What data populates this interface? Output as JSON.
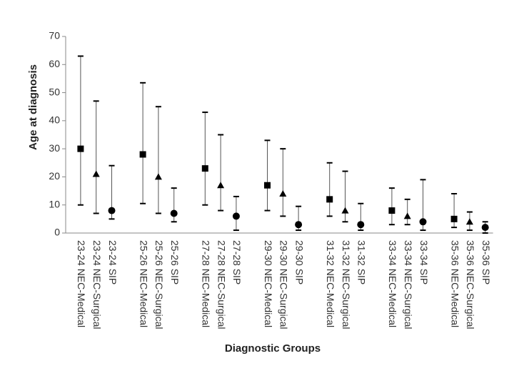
{
  "chart_data": {
    "type": "range",
    "y_label": "Age at diagnosis",
    "x_label": "Diagnostic Groups",
    "categories": [
      "23-24 NEC-Medical",
      "23-24 NEC-Surgical",
      "23-24 SIP",
      null,
      "25-26 NEC-Medical",
      "25-26 NEC-Surgical",
      "25-26 SIP",
      null,
      "27-28 NEC-Medical",
      "27-28 NEC-Surgical",
      "27-28 SIP",
      null,
      "29-30 NEC-Medical",
      "29-30 NEC-Surgical",
      "29-30 SIP",
      null,
      "31-32 NEC-Medical",
      "31-32 NEC-Surgical",
      "31-32 SIP",
      null,
      "33-34 NEC-Medical",
      "33-34 NEC-Surgical",
      "33-34 SIP",
      null,
      "35-36 NEC-Medical",
      "35-36 NEC-Surgical",
      "35-36 SIP"
    ],
    "values": [
      30,
      21,
      8,
      null,
      28,
      20,
      7,
      null,
      23,
      17,
      6,
      null,
      17,
      14,
      3,
      null,
      12,
      8,
      3,
      null,
      8,
      6,
      4,
      null,
      5,
      4,
      2
    ],
    "high": [
      63,
      47,
      24,
      null,
      53.5,
      45,
      16,
      null,
      43,
      35,
      13,
      null,
      33,
      30,
      9.5,
      null,
      25,
      22,
      10.5,
      null,
      16,
      12,
      19,
      null,
      14,
      7.5,
      4
    ],
    "low": [
      10,
      7,
      5,
      null,
      10.5,
      7,
      4,
      null,
      10,
      8,
      1,
      null,
      8,
      6,
      1,
      null,
      6,
      4,
      1,
      null,
      3,
      3,
      1,
      null,
      2,
      1,
      0
    ],
    "markers": [
      "square",
      "triangle",
      "circle",
      null,
      "square",
      "triangle",
      "circle",
      null,
      "square",
      "triangle",
      "circle",
      null,
      "square",
      "triangle",
      "circle",
      null,
      "square",
      "triangle",
      "circle",
      null,
      "square",
      "triangle",
      "circle",
      null,
      "square",
      "triangle",
      "circle"
    ],
    "color": "#000000",
    "ylim": [
      0,
      70
    ],
    "yticks": [
      0,
      10,
      20,
      30,
      40,
      50,
      60,
      70
    ],
    "grid": false
  }
}
